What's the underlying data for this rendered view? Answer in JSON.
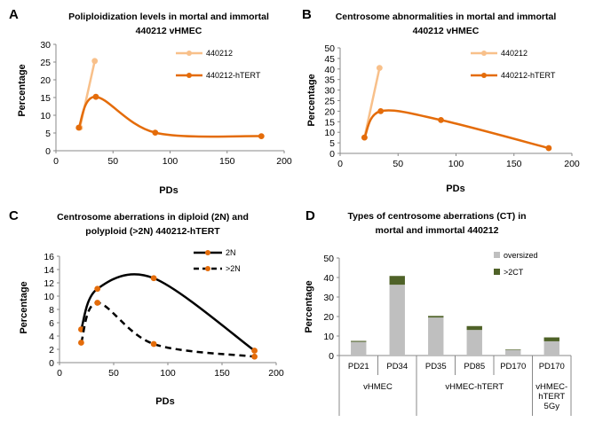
{
  "chart_data": [
    {
      "panel": "A",
      "type": "line",
      "title": "Poliploidization  levels in mortal and immortal 440212 vHMEC",
      "title_lines": [
        "Poliploidization  levels in mortal and immortal",
        "440212 vHMEC"
      ],
      "xlabel": "PDs",
      "ylabel": "Percentage",
      "xlim": [
        0,
        200
      ],
      "ylim": [
        0,
        30
      ],
      "xticks": [
        0,
        50,
        100,
        150,
        200
      ],
      "yticks": [
        0,
        5,
        10,
        15,
        20,
        25,
        30
      ],
      "series": [
        {
          "name": "440212",
          "color": "#f8c08a",
          "x": [
            21,
            34
          ],
          "y": [
            6.5,
            25.3
          ]
        },
        {
          "name": "440212-hTERT",
          "color": "#e46c0a",
          "x": [
            20,
            35,
            87,
            180
          ],
          "y": [
            6.5,
            15.2,
            5.1,
            4.1
          ]
        }
      ]
    },
    {
      "panel": "B",
      "type": "line",
      "title": "Centrosome abnormalities in mortal and immortal 440212 vHMEC",
      "title_lines": [
        "Centrosome abnormalities in mortal and immortal",
        "440212 vHMEC"
      ],
      "xlabel": "PDs",
      "ylabel": "Percentage",
      "xlim": [
        0,
        200
      ],
      "ylim": [
        0,
        50
      ],
      "xticks": [
        0,
        50,
        100,
        150,
        200
      ],
      "yticks": [
        0,
        5,
        10,
        15,
        20,
        25,
        30,
        35,
        40,
        45,
        50
      ],
      "series": [
        {
          "name": "440212",
          "color": "#f8c08a",
          "x": [
            21,
            34
          ],
          "y": [
            7.5,
            40.5
          ]
        },
        {
          "name": "440212-hTERT",
          "color": "#e46c0a",
          "x": [
            21,
            35,
            87,
            180
          ],
          "y": [
            7.5,
            20.0,
            15.8,
            2.5
          ]
        }
      ]
    },
    {
      "panel": "C",
      "type": "line",
      "title": "Centrosome aberrations in diploid (2N) and polyploid (>2N) 440212-hTERT",
      "title_lines": [
        "Centrosome aberrations in diploid (2N) and",
        "polyploid (>2N) 440212-hTERT"
      ],
      "xlabel": "PDs",
      "ylabel": "Percentage",
      "xlim": [
        0,
        200
      ],
      "ylim": [
        0,
        16
      ],
      "xticks": [
        0,
        50,
        100,
        150,
        200
      ],
      "yticks": [
        0,
        2,
        4,
        6,
        8,
        10,
        12,
        14,
        16
      ],
      "series": [
        {
          "name": "2N",
          "color": "#000000",
          "dash": false,
          "x": [
            20,
            35,
            87,
            180
          ],
          "y": [
            5.0,
            11.1,
            12.7,
            1.8
          ]
        },
        {
          "name": ">2N",
          "color": "#000000",
          "dash": true,
          "x": [
            20,
            35,
            87,
            180
          ],
          "y": [
            3.0,
            9.0,
            2.8,
            0.9
          ]
        }
      ]
    },
    {
      "panel": "D",
      "type": "bar",
      "title": "Types of centrosome aberrations (CT) in mortal and immortal 440212",
      "title_lines": [
        "Types of centrosome aberrations (CT) in",
        "mortal and immortal 440212"
      ],
      "ylim": [
        0,
        50
      ],
      "yticks": [
        0,
        10,
        20,
        30,
        40,
        50
      ],
      "ylabel": "Percentage",
      "categories": [
        "PD21",
        "PD34",
        "PD35",
        "PD85",
        "PD170",
        "PD170"
      ],
      "groups": [
        {
          "label_lines": [
            "vHMEC"
          ],
          "span": [
            0,
            1
          ]
        },
        {
          "label_lines": [
            "vHMEC-hTERT"
          ],
          "span": [
            2,
            4
          ]
        },
        {
          "label_lines": [
            "vHMEC-",
            "hTERT",
            "5Gy"
          ],
          "span": [
            5,
            5
          ]
        }
      ],
      "series": [
        {
          "name": "oversized",
          "color": "#bfbfbf",
          "values": [
            7.0,
            36.3,
            19.5,
            13.1,
            2.8,
            7.3
          ]
        },
        {
          "name": ">2CT",
          "color": "#4f6228",
          "values": [
            0.5,
            4.5,
            0.8,
            2.0,
            0.3,
            2.0
          ]
        }
      ]
    }
  ],
  "panel_letters": [
    "A",
    "B",
    "C",
    "D"
  ]
}
